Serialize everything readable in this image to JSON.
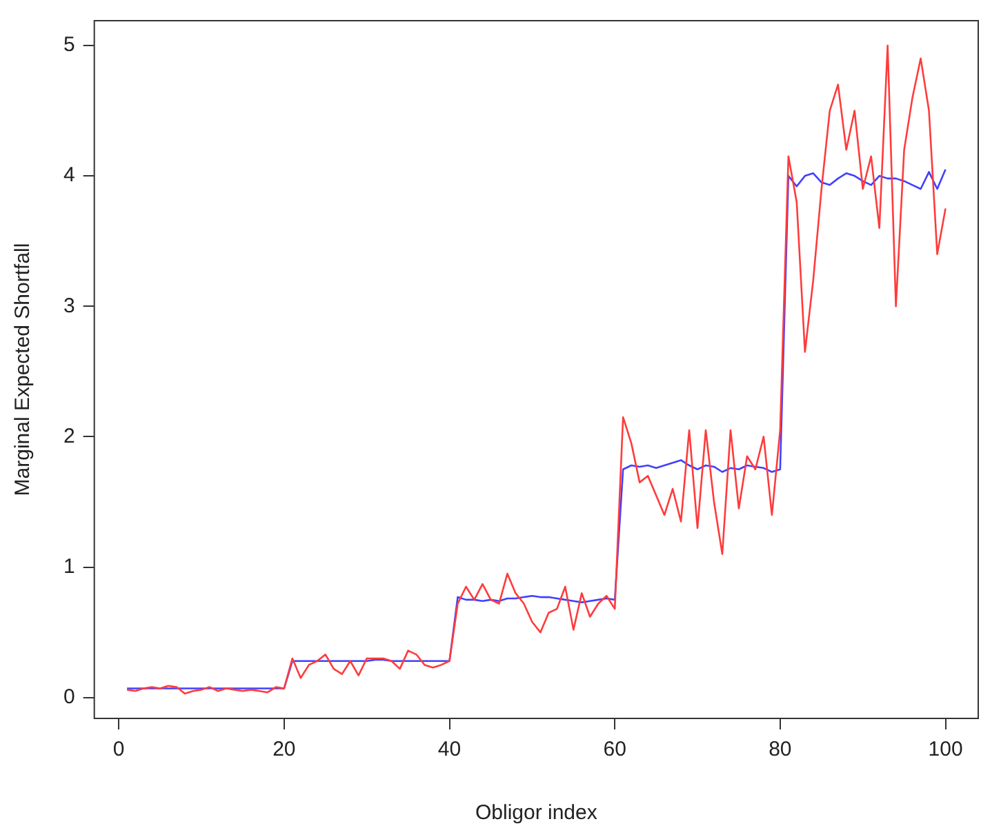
{
  "chart_data": {
    "type": "line",
    "xlabel": "Obligor index",
    "ylabel": "Marginal Expected Shortfall",
    "x": [
      1,
      2,
      3,
      4,
      5,
      6,
      7,
      8,
      9,
      10,
      11,
      12,
      13,
      14,
      15,
      16,
      17,
      18,
      19,
      20,
      21,
      22,
      23,
      24,
      25,
      26,
      27,
      28,
      29,
      30,
      31,
      32,
      33,
      34,
      35,
      36,
      37,
      38,
      39,
      40,
      41,
      42,
      43,
      44,
      45,
      46,
      47,
      48,
      49,
      50,
      51,
      52,
      53,
      54,
      55,
      56,
      57,
      58,
      59,
      60,
      61,
      62,
      63,
      64,
      65,
      66,
      67,
      68,
      69,
      70,
      71,
      72,
      73,
      74,
      75,
      76,
      77,
      78,
      79,
      80,
      81,
      82,
      83,
      84,
      85,
      86,
      87,
      88,
      89,
      90,
      91,
      92,
      93,
      94,
      95,
      96,
      97,
      98,
      99,
      100
    ],
    "series": [
      {
        "color": "#ff3b3b",
        "values": [
          0.06,
          0.05,
          0.07,
          0.08,
          0.07,
          0.09,
          0.08,
          0.03,
          0.05,
          0.06,
          0.08,
          0.05,
          0.07,
          0.06,
          0.05,
          0.06,
          0.05,
          0.04,
          0.08,
          0.07,
          0.3,
          0.15,
          0.25,
          0.28,
          0.33,
          0.22,
          0.18,
          0.28,
          0.17,
          0.3,
          0.3,
          0.3,
          0.28,
          0.22,
          0.36,
          0.33,
          0.25,
          0.23,
          0.25,
          0.28,
          0.72,
          0.85,
          0.75,
          0.87,
          0.75,
          0.72,
          0.95,
          0.8,
          0.72,
          0.58,
          0.5,
          0.65,
          0.68,
          0.85,
          0.52,
          0.8,
          0.62,
          0.72,
          0.78,
          0.68,
          2.15,
          1.95,
          1.65,
          1.7,
          1.55,
          1.4,
          1.6,
          1.35,
          2.05,
          1.3,
          2.05,
          1.5,
          1.1,
          2.05,
          1.45,
          1.85,
          1.75,
          2.0,
          1.4,
          2.05,
          4.15,
          3.8,
          2.65,
          3.2,
          3.9,
          4.5,
          4.7,
          4.2,
          4.5,
          3.9,
          4.15,
          3.6,
          5.0,
          3.0,
          4.2,
          4.6,
          4.9,
          4.5,
          3.4,
          3.75
        ]
      },
      {
        "color": "#4040ff",
        "values": [
          0.07,
          0.07,
          0.07,
          0.07,
          0.07,
          0.07,
          0.07,
          0.07,
          0.07,
          0.07,
          0.07,
          0.07,
          0.07,
          0.07,
          0.07,
          0.07,
          0.07,
          0.07,
          0.07,
          0.07,
          0.28,
          0.28,
          0.28,
          0.28,
          0.28,
          0.28,
          0.28,
          0.28,
          0.28,
          0.28,
          0.29,
          0.29,
          0.28,
          0.28,
          0.28,
          0.28,
          0.28,
          0.28,
          0.28,
          0.28,
          0.77,
          0.75,
          0.75,
          0.74,
          0.75,
          0.74,
          0.76,
          0.76,
          0.77,
          0.78,
          0.77,
          0.77,
          0.76,
          0.75,
          0.74,
          0.73,
          0.74,
          0.75,
          0.76,
          0.75,
          1.75,
          1.78,
          1.77,
          1.78,
          1.76,
          1.78,
          1.8,
          1.82,
          1.78,
          1.75,
          1.78,
          1.77,
          1.73,
          1.76,
          1.75,
          1.78,
          1.77,
          1.76,
          1.73,
          1.75,
          4.0,
          3.92,
          4.0,
          4.02,
          3.95,
          3.93,
          3.98,
          4.02,
          4.0,
          3.96,
          3.93,
          4.0,
          3.98,
          3.98,
          3.96,
          3.93,
          3.9,
          4.03,
          3.9,
          4.05
        ]
      }
    ],
    "xlim": [
      -2.96,
      103.96
    ],
    "ylim": [
      -0.16,
      5.19
    ],
    "xticks": [
      0,
      20,
      40,
      60,
      80,
      100
    ],
    "yticks": [
      0,
      1,
      2,
      3,
      4,
      5
    ],
    "grid": false,
    "legend": false,
    "marker": "none",
    "line_style": "solid"
  }
}
